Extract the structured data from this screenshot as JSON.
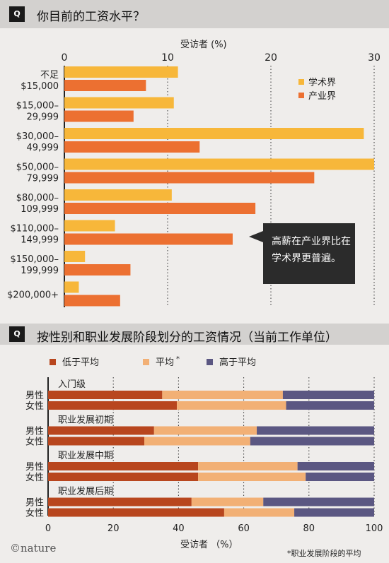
{
  "chart_data": [
    {
      "type": "bar",
      "orientation": "horizontal",
      "title": "你目前的工资水平？",
      "xlabel": "受访者 (%)",
      "xlim": [
        0,
        30
      ],
      "xticks": [
        0,
        10,
        20,
        30
      ],
      "grid": "vertical dotted at 10, 20, 30",
      "legend_position": "upper-right",
      "categories": [
        [
          "不足",
          "$15,000"
        ],
        [
          "$15,000–",
          "29,999"
        ],
        [
          "$30,000–",
          "49,999"
        ],
        [
          "$50,000–",
          "79,999"
        ],
        [
          "$80,000–",
          "109,999"
        ],
        [
          "$110,000–",
          "149,999"
        ],
        [
          "$150,000–",
          "199,999"
        ],
        [
          "$200,000+"
        ]
      ],
      "series": [
        {
          "name": "学术界",
          "color": "#f7b73a",
          "values": [
            11,
            10.6,
            29,
            30,
            10.4,
            4.9,
            2,
            1.4
          ]
        },
        {
          "name": "产业界",
          "color": "#ec7031",
          "values": [
            7.9,
            6.7,
            13.1,
            24.2,
            18.5,
            16.3,
            6.4,
            5.4
          ]
        }
      ],
      "annotation": {
        "lines": [
          "高薪在产业界比在",
          "学术界更普遍。"
        ],
        "points_to": "$110,000–149,999 产业界"
      }
    },
    {
      "type": "bar",
      "orientation": "horizontal",
      "stacked": true,
      "title": "按性别和职业发展阶段划分的工资情况（当前工作单位）",
      "xlabel": "受访者 （%）",
      "xlim": [
        0,
        100
      ],
      "xticks": [
        0,
        20,
        40,
        60,
        80,
        100
      ],
      "legend_position": "top",
      "groups": [
        {
          "stage": "入门级",
          "rows": [
            {
              "gender": "男性",
              "values": [
                35,
                37,
                28
              ]
            },
            {
              "gender": "女性",
              "values": [
                39.5,
                33.5,
                27
              ]
            }
          ]
        },
        {
          "stage": "职业发展初期",
          "rows": [
            {
              "gender": "男性",
              "values": [
                32.5,
                31.5,
                36
              ]
            },
            {
              "gender": "女性",
              "values": [
                29.5,
                32.5,
                38
              ]
            }
          ]
        },
        {
          "stage": "职业发展中期",
          "rows": [
            {
              "gender": "男性",
              "values": [
                46,
                30.5,
                23.5
              ]
            },
            {
              "gender": "女性",
              "values": [
                46,
                33,
                21
              ]
            }
          ]
        },
        {
          "stage": "职业发展后期",
          "rows": [
            {
              "gender": "男性",
              "values": [
                44,
                22,
                34
              ]
            },
            {
              "gender": "女性",
              "values": [
                54,
                21.5,
                24.5
              ]
            }
          ]
        }
      ],
      "series": [
        {
          "name": "低于平均",
          "color": "#b8461e"
        },
        {
          "name": "平均",
          "footnote_mark": "*",
          "color": "#f2b075"
        },
        {
          "name": "高于平均",
          "color": "#5b5782"
        }
      ],
      "footnote": "*职业发展阶段的平均"
    }
  ],
  "badge": "Q",
  "logo": "©nature"
}
